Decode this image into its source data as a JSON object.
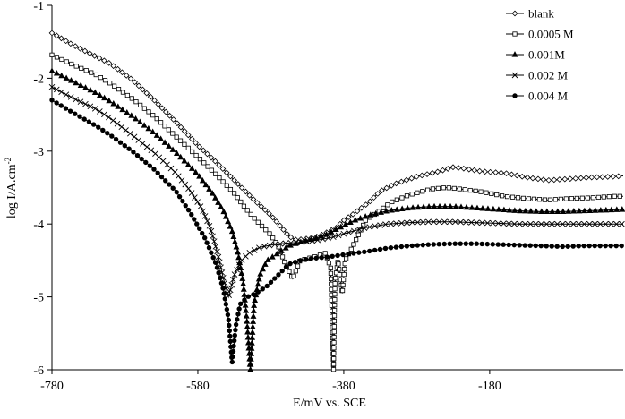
{
  "chart_data": {
    "type": "line",
    "title": "",
    "xlabel": "E/mV vs. SCE",
    "ylabel": "log I/A.cm",
    "ylabel_sup": "-2",
    "xlim": [
      -780,
      3
    ],
    "ylim": [
      -6,
      -1
    ],
    "xticks": [
      "-780",
      "-580",
      "-380",
      "-180"
    ],
    "xtick_values": [
      -780,
      -580,
      -380,
      -180
    ],
    "yticks": [
      "-1",
      "-2",
      "-3",
      "-4",
      "-5",
      "-6"
    ],
    "ytick_values": [
      -1,
      -2,
      -3,
      -4,
      -5,
      -6
    ],
    "grid": false,
    "legend_position": "top-right",
    "series": [
      {
        "name": "blank",
        "marker": "diamond",
        "points": [
          [
            -780,
            -1.38
          ],
          [
            -750,
            -1.55
          ],
          [
            -720,
            -1.7
          ],
          [
            -700,
            -1.8
          ],
          [
            -670,
            -2.02
          ],
          [
            -640,
            -2.3
          ],
          [
            -610,
            -2.6
          ],
          [
            -580,
            -2.92
          ],
          [
            -555,
            -3.15
          ],
          [
            -530,
            -3.4
          ],
          [
            -505,
            -3.65
          ],
          [
            -480,
            -3.88
          ],
          [
            -465,
            -4.05
          ],
          [
            -455,
            -4.17
          ],
          [
            -445,
            -4.22
          ],
          [
            -430,
            -4.2
          ],
          [
            -415,
            -4.17
          ],
          [
            -400,
            -4.1
          ],
          [
            -390,
            -4.05
          ],
          [
            -380,
            -3.95
          ],
          [
            -365,
            -3.85
          ],
          [
            -345,
            -3.7
          ],
          [
            -330,
            -3.55
          ],
          [
            -310,
            -3.45
          ],
          [
            -280,
            -3.35
          ],
          [
            -250,
            -3.28
          ],
          [
            -230,
            -3.22
          ],
          [
            -215,
            -3.24
          ],
          [
            -190,
            -3.28
          ],
          [
            -160,
            -3.3
          ],
          [
            -130,
            -3.36
          ],
          [
            -100,
            -3.4
          ],
          [
            -70,
            -3.38
          ],
          [
            -40,
            -3.36
          ],
          [
            -10,
            -3.35
          ],
          [
            3,
            -3.34
          ]
        ]
      },
      {
        "name": "0.0005 M",
        "marker": "square",
        "points": [
          [
            -780,
            -1.68
          ],
          [
            -750,
            -1.82
          ],
          [
            -720,
            -1.95
          ],
          [
            -700,
            -2.07
          ],
          [
            -670,
            -2.28
          ],
          [
            -640,
            -2.52
          ],
          [
            -610,
            -2.8
          ],
          [
            -580,
            -3.08
          ],
          [
            -555,
            -3.32
          ],
          [
            -530,
            -3.58
          ],
          [
            -515,
            -3.78
          ],
          [
            -500,
            -3.95
          ],
          [
            -490,
            -4.05
          ],
          [
            -480,
            -4.15
          ],
          [
            -470,
            -4.3
          ],
          [
            -460,
            -4.55
          ],
          [
            -450,
            -4.75
          ],
          [
            -440,
            -4.5
          ],
          [
            -420,
            -4.45
          ],
          [
            -405,
            -4.4
          ],
          [
            -398,
            -4.6
          ],
          [
            -394,
            -6.0
          ],
          [
            -392,
            -4.8
          ],
          [
            -388,
            -4.5
          ],
          [
            -382,
            -4.95
          ],
          [
            -378,
            -4.5
          ],
          [
            -370,
            -4.35
          ],
          [
            -360,
            -4.15
          ],
          [
            -350,
            -3.95
          ],
          [
            -335,
            -3.85
          ],
          [
            -315,
            -3.7
          ],
          [
            -290,
            -3.6
          ],
          [
            -260,
            -3.52
          ],
          [
            -240,
            -3.5
          ],
          [
            -220,
            -3.52
          ],
          [
            -190,
            -3.56
          ],
          [
            -160,
            -3.62
          ],
          [
            -130,
            -3.65
          ],
          [
            -100,
            -3.67
          ],
          [
            -70,
            -3.65
          ],
          [
            -40,
            -3.64
          ],
          [
            -10,
            -3.62
          ],
          [
            3,
            -3.62
          ]
        ]
      },
      {
        "name": "0.001M",
        "marker": "triangle",
        "points": [
          [
            -780,
            -1.9
          ],
          [
            -750,
            -2.05
          ],
          [
            -720,
            -2.2
          ],
          [
            -700,
            -2.32
          ],
          [
            -670,
            -2.52
          ],
          [
            -640,
            -2.75
          ],
          [
            -610,
            -3.02
          ],
          [
            -580,
            -3.32
          ],
          [
            -560,
            -3.58
          ],
          [
            -545,
            -3.82
          ],
          [
            -533,
            -4.1
          ],
          [
            -525,
            -4.4
          ],
          [
            -518,
            -4.8
          ],
          [
            -513,
            -5.3
          ],
          [
            -508,
            -6.0
          ],
          [
            -503,
            -5.1
          ],
          [
            -495,
            -4.7
          ],
          [
            -485,
            -4.5
          ],
          [
            -470,
            -4.4
          ],
          [
            -455,
            -4.3
          ],
          [
            -440,
            -4.25
          ],
          [
            -420,
            -4.2
          ],
          [
            -405,
            -4.15
          ],
          [
            -395,
            -4.1
          ],
          [
            -380,
            -4.02
          ],
          [
            -365,
            -3.95
          ],
          [
            -345,
            -3.88
          ],
          [
            -320,
            -3.82
          ],
          [
            -290,
            -3.78
          ],
          [
            -260,
            -3.76
          ],
          [
            -230,
            -3.76
          ],
          [
            -200,
            -3.78
          ],
          [
            -170,
            -3.8
          ],
          [
            -140,
            -3.82
          ],
          [
            -110,
            -3.83
          ],
          [
            -80,
            -3.83
          ],
          [
            -50,
            -3.82
          ],
          [
            -20,
            -3.81
          ],
          [
            3,
            -3.8
          ]
        ]
      },
      {
        "name": "0.002 M",
        "marker": "x",
        "points": [
          [
            -780,
            -2.12
          ],
          [
            -750,
            -2.28
          ],
          [
            -720,
            -2.42
          ],
          [
            -700,
            -2.55
          ],
          [
            -670,
            -2.78
          ],
          [
            -640,
            -3.02
          ],
          [
            -610,
            -3.3
          ],
          [
            -590,
            -3.55
          ],
          [
            -575,
            -3.78
          ],
          [
            -563,
            -4.05
          ],
          [
            -553,
            -4.4
          ],
          [
            -545,
            -4.75
          ],
          [
            -538,
            -5.0
          ],
          [
            -530,
            -4.7
          ],
          [
            -520,
            -4.5
          ],
          [
            -510,
            -4.4
          ],
          [
            -495,
            -4.32
          ],
          [
            -475,
            -4.28
          ],
          [
            -455,
            -4.26
          ],
          [
            -435,
            -4.25
          ],
          [
            -415,
            -4.22
          ],
          [
            -395,
            -4.18
          ],
          [
            -375,
            -4.12
          ],
          [
            -350,
            -4.05
          ],
          [
            -320,
            -4.0
          ],
          [
            -290,
            -3.98
          ],
          [
            -260,
            -3.97
          ],
          [
            -230,
            -3.97
          ],
          [
            -200,
            -3.98
          ],
          [
            -170,
            -3.99
          ],
          [
            -140,
            -4.0
          ],
          [
            -110,
            -4.0
          ],
          [
            -80,
            -4.0
          ],
          [
            -50,
            -4.0
          ],
          [
            -20,
            -4.0
          ],
          [
            3,
            -4.0
          ]
        ]
      },
      {
        "name": "0.004 M",
        "marker": "circle",
        "points": [
          [
            -780,
            -2.3
          ],
          [
            -750,
            -2.48
          ],
          [
            -720,
            -2.65
          ],
          [
            -700,
            -2.78
          ],
          [
            -670,
            -3.0
          ],
          [
            -640,
            -3.25
          ],
          [
            -610,
            -3.55
          ],
          [
            -590,
            -3.85
          ],
          [
            -570,
            -4.2
          ],
          [
            -555,
            -4.55
          ],
          [
            -545,
            -4.9
          ],
          [
            -538,
            -5.3
          ],
          [
            -533,
            -5.9
          ],
          [
            -528,
            -5.4
          ],
          [
            -522,
            -5.1
          ],
          [
            -512,
            -5.0
          ],
          [
            -500,
            -4.95
          ],
          [
            -485,
            -4.85
          ],
          [
            -470,
            -4.7
          ],
          [
            -455,
            -4.55
          ],
          [
            -440,
            -4.5
          ],
          [
            -420,
            -4.47
          ],
          [
            -400,
            -4.45
          ],
          [
            -380,
            -4.42
          ],
          [
            -350,
            -4.38
          ],
          [
            -320,
            -4.33
          ],
          [
            -290,
            -4.3
          ],
          [
            -260,
            -4.28
          ],
          [
            -230,
            -4.27
          ],
          [
            -200,
            -4.27
          ],
          [
            -170,
            -4.28
          ],
          [
            -140,
            -4.29
          ],
          [
            -110,
            -4.3
          ],
          [
            -80,
            -4.31
          ],
          [
            -50,
            -4.3
          ],
          [
            -20,
            -4.3
          ],
          [
            3,
            -4.3
          ]
        ]
      }
    ]
  }
}
